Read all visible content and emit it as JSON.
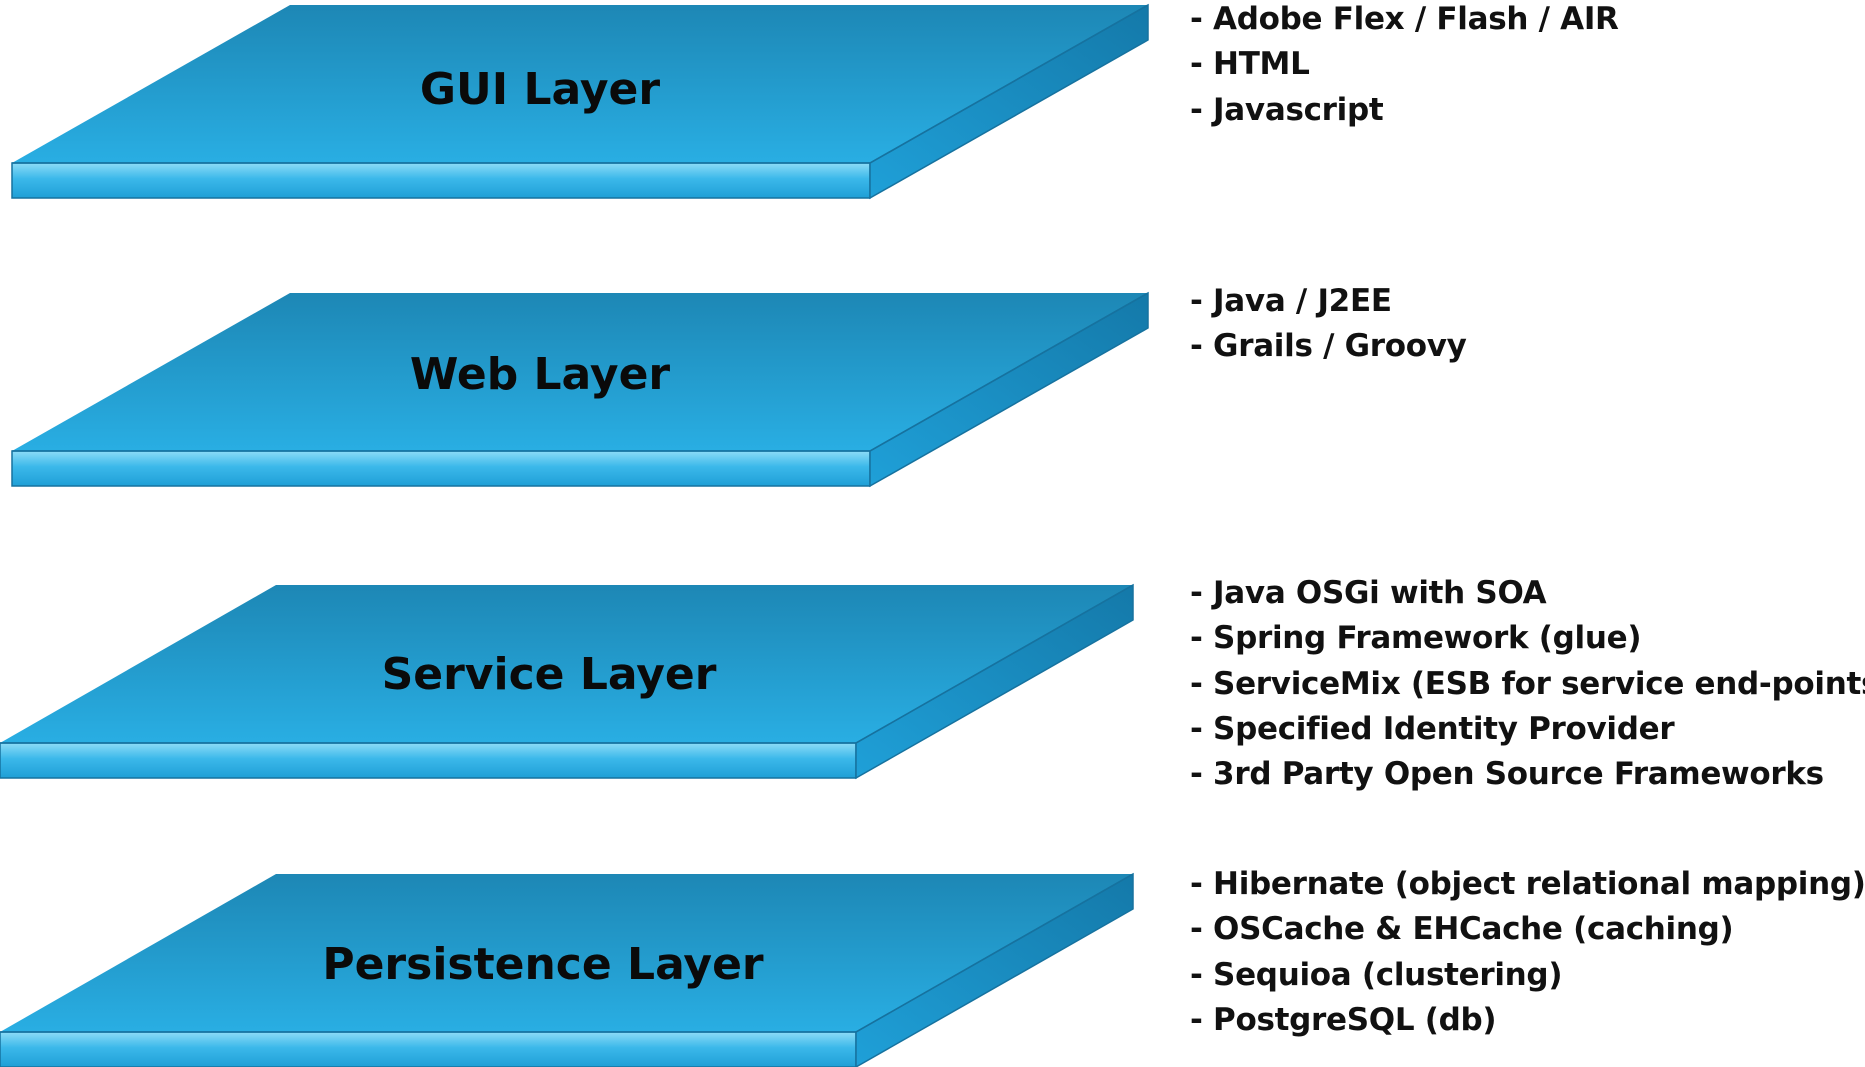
{
  "layers": [
    {
      "label": "GUI Layer",
      "items": [
        "- Adobe Flex / Flash / AIR",
        "- HTML",
        "- Javascript"
      ]
    },
    {
      "label": "Web Layer",
      "items": [
        "- Java / J2EE",
        "- Grails / Groovy"
      ]
    },
    {
      "label": "Service Layer",
      "items": [
        "- Java OSGi with SOA",
        "- Spring Framework (glue)",
        "- ServiceMix (ESB for service end-points)",
        "- Specified Identity Provider",
        "- 3rd Party Open Source Frameworks"
      ]
    },
    {
      "label": "Persistence Layer",
      "items": [
        "- Hibernate (object relational mapping)",
        "- OSCache & EHCache (caching)",
        "- Sequioa (clustering)",
        "- PostgreSQL (db)"
      ]
    }
  ],
  "colors": {
    "slab_top_light": "#29aee3",
    "slab_top_dark": "#1d87b5",
    "slab_front_light": "#8ddcf7",
    "slab_front_dark": "#1f9fd6",
    "slab_side_light": "#1fa0d8",
    "slab_side_dark": "#1479a9",
    "edge": "#16729f",
    "label_text": "#0a0a0a",
    "list_text": "#111111"
  }
}
